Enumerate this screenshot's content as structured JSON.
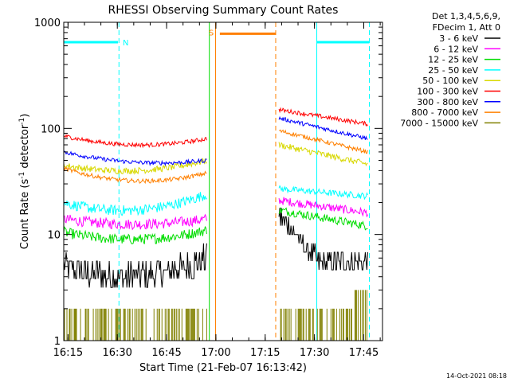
{
  "chart_data": {
    "type": "line",
    "title": "RHESSI Observing Summary Count Rates",
    "xlabel": "Start Time (21-Feb-07 16:13:42)",
    "ylabel_main": "Count Rate (s",
    "ylabel_sup1": "-1",
    "ylabel_mid": " detector",
    "ylabel_sup2": "-1",
    "ylabel_end": ")",
    "yscale": "log",
    "xlim_minutes": [
      0,
      97
    ],
    "ylim": [
      1,
      1000
    ],
    "x_ticks": [
      {
        "label": "16:15",
        "minute": 1.3
      },
      {
        "label": "16:30",
        "minute": 16.3
      },
      {
        "label": "16:45",
        "minute": 31.3
      },
      {
        "label": "17:00",
        "minute": 46.3
      },
      {
        "label": "17:15",
        "minute": 61.3
      },
      {
        "label": "17:30",
        "minute": 76.3
      },
      {
        "label": "17:45",
        "minute": 91.3
      }
    ],
    "y_ticks": [
      {
        "label": "1",
        "value": 1
      },
      {
        "label": "10",
        "value": 10
      },
      {
        "label": "100",
        "value": 100
      },
      {
        "label": "1000",
        "value": 1000
      }
    ],
    "legend_header": [
      "Det 1,3,4,5,6,9,",
      "FDecim 1, Att 0"
    ],
    "series": [
      {
        "name": "3 - 6 keV",
        "color": "#000000",
        "seg1": {
          "start": 5,
          "end": 6,
          "mid": 4,
          "amp": 1.5,
          "noise": 0.14
        },
        "seg2": {
          "start": 15,
          "end": 5.5,
          "amp": 0,
          "noise": 0.1,
          "drop": true
        },
        "step": true
      },
      {
        "name": "6 - 12 keV",
        "color": "#ff00ff",
        "seg1": {
          "start": 14,
          "end": 14,
          "mid": 12.5,
          "amp": 0,
          "noise": 0.05
        },
        "seg2": {
          "start": 21,
          "end": 16,
          "amp": 0,
          "noise": 0.04
        }
      },
      {
        "name": "12 - 25 keV",
        "color": "#00dd00",
        "seg1": {
          "start": 10.5,
          "end": 11,
          "mid": 9,
          "amp": 0,
          "noise": 0.05
        },
        "seg2": {
          "start": 17,
          "end": 12,
          "amp": 0,
          "noise": 0.04
        }
      },
      {
        "name": "25 - 50 keV",
        "color": "#00ffff",
        "seg1": {
          "start": 20,
          "end": 24,
          "mid": 17,
          "amp": 0,
          "noise": 0.05
        },
        "seg2": {
          "start": 27,
          "end": 23,
          "amp": 0,
          "noise": 0.03
        }
      },
      {
        "name": "50 - 100 keV",
        "color": "#d8d800",
        "seg1": {
          "start": 45,
          "end": 50,
          "mid": 40,
          "amp": 0,
          "noise": 0.03
        },
        "seg2": {
          "start": 70,
          "end": 46,
          "amp": 0,
          "noise": 0.03
        }
      },
      {
        "name": "100 - 300 keV",
        "color": "#ff0000",
        "seg1": {
          "start": 85,
          "end": 80,
          "mid": 70,
          "amp": 0,
          "noise": 0.02
        },
        "seg2": {
          "start": 150,
          "end": 110,
          "amp": 0,
          "noise": 0.02
        }
      },
      {
        "name": "300 - 800 keV",
        "color": "#0000ff",
        "seg1": {
          "start": 60,
          "end": 50,
          "mid": 48,
          "amp": 0,
          "noise": 0.02
        },
        "seg2": {
          "start": 125,
          "end": 80,
          "amp": 0,
          "noise": 0.02
        }
      },
      {
        "name": "800 - 7000 keV",
        "color": "#ff8000",
        "seg1": {
          "start": 42,
          "end": 38,
          "mid": 32,
          "amp": 0,
          "noise": 0.02
        },
        "seg2": {
          "start": 95,
          "end": 60,
          "amp": 0,
          "noise": 0.02
        }
      },
      {
        "name": "7000 - 15000 keV",
        "color": "#808000",
        "seg1": {
          "start": 2,
          "end": 2,
          "mid": 2,
          "amp": 0,
          "noise": 0
        },
        "seg2": {
          "start": 2,
          "end": 3,
          "amp": 0,
          "noise": 0
        },
        "bars": true
      }
    ],
    "segments_minutes": {
      "seg1": [
        0,
        43.5
      ],
      "seg2": [
        65.5,
        92.5
      ]
    },
    "flags": [
      {
        "label": "N",
        "color": "#00ffff",
        "bar": [
          0,
          16.5
        ],
        "y": 650
      },
      {
        "label": "S",
        "color": "#ff8000",
        "bar": [
          47.5,
          64.5
        ],
        "y": 780
      },
      {
        "label": "",
        "color": "#00ffff",
        "bar": [
          77,
          93
        ],
        "y": 650
      }
    ],
    "vertical_lines": [
      {
        "minute": 0,
        "color": "#00ffff",
        "style": "solid"
      },
      {
        "minute": 16.8,
        "color": "#00ffff",
        "style": "dashed"
      },
      {
        "minute": 44.3,
        "color": "#00dd00",
        "style": "solid"
      },
      {
        "minute": 46.2,
        "color": "#ff8000",
        "style": "solid"
      },
      {
        "minute": 64.5,
        "color": "#ff8000",
        "style": "dashed"
      },
      {
        "minute": 77,
        "color": "#00ffff",
        "style": "solid"
      },
      {
        "minute": 93,
        "color": "#00ffff",
        "style": "dashed"
      }
    ]
  },
  "footer_timestamp": "14-Oct-2021 08:18"
}
